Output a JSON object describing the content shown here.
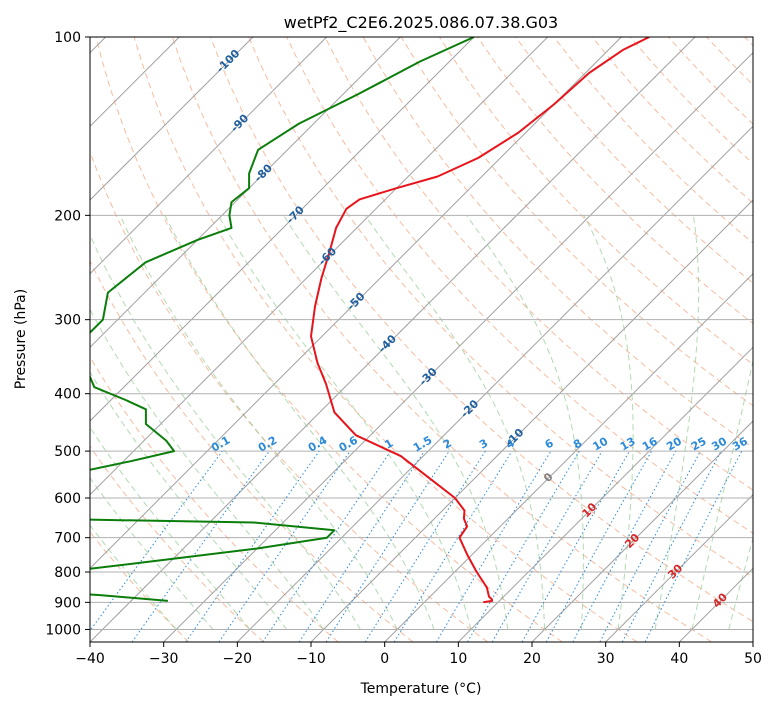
{
  "chart_data": {
    "type": "line",
    "subtype": "skew-T log-P diagram",
    "title": "wetPf2_C2E6.2025.086.07.38.G03",
    "xlabel": "Temperature (°C)",
    "ylabel": "Pressure (hPa)",
    "xlim": [
      -40,
      50
    ],
    "ylim": [
      1050,
      100
    ],
    "y_scale": "log",
    "grid": true,
    "x_ticks": [
      -40,
      -30,
      -20,
      -10,
      0,
      10,
      20,
      30,
      40,
      50
    ],
    "y_ticks": [
      100,
      200,
      300,
      400,
      500,
      600,
      700,
      800,
      900,
      1000
    ],
    "isotherm_labels": [
      {
        "value": "-100",
        "T": -100,
        "p": 110
      },
      {
        "value": "-90",
        "T": -90,
        "p": 140
      },
      {
        "value": "-80",
        "T": -80,
        "p": 170
      },
      {
        "value": "-70",
        "T": -70,
        "p": 200
      },
      {
        "value": "-60",
        "T": -60,
        "p": 235
      },
      {
        "value": "-50",
        "T": -50,
        "p": 280
      },
      {
        "value": "-40",
        "T": -40,
        "p": 330
      },
      {
        "value": "-30",
        "T": -30,
        "p": 375
      },
      {
        "value": "-20",
        "T": -20,
        "p": 425
      },
      {
        "value": "-10",
        "T": -10,
        "p": 475
      },
      {
        "value": "0",
        "T": 0,
        "p": 555
      },
      {
        "value": "10",
        "T": 10,
        "p": 630
      },
      {
        "value": "20",
        "T": 20,
        "p": 710
      },
      {
        "value": "30",
        "T": 30,
        "p": 800
      },
      {
        "value": "40",
        "T": 40,
        "p": 895
      }
    ],
    "mixing_ratio_labels": [
      "0.1",
      "0.2",
      "0.4",
      "0.6",
      "1",
      "1.5",
      "2",
      "3",
      "4",
      "6",
      "8",
      "10",
      "13",
      "16",
      "20",
      "25",
      "30",
      "36"
    ],
    "series": [
      {
        "name": "Temperature",
        "color": "#e8141b",
        "points": [
          [
            -46.2,
            100
          ],
          [
            -48.0,
            105
          ],
          [
            -49.5,
            115
          ],
          [
            -50.0,
            130
          ],
          [
            -51.0,
            145
          ],
          [
            -53.0,
            160
          ],
          [
            -56.0,
            172
          ],
          [
            -60.0,
            180
          ],
          [
            -63.5,
            188
          ],
          [
            -64.0,
            195
          ],
          [
            -62.8,
            210
          ],
          [
            -60.5,
            230
          ],
          [
            -58.0,
            255
          ],
          [
            -55.0,
            285
          ],
          [
            -51.5,
            320
          ],
          [
            -47.0,
            355
          ],
          [
            -43.0,
            385
          ],
          [
            -38.0,
            430
          ],
          [
            -32.0,
            470
          ],
          [
            -23.0,
            510
          ],
          [
            -15.5,
            560
          ],
          [
            -10.0,
            600
          ],
          [
            -7.0,
            630
          ],
          [
            -6.0,
            650
          ],
          [
            -4.5,
            670
          ],
          [
            -4.0,
            700
          ],
          [
            -0.5,
            750
          ],
          [
            3.0,
            800
          ],
          [
            6.5,
            850
          ],
          [
            8.0,
            880
          ],
          [
            8.8,
            890
          ],
          [
            9.0,
            895
          ],
          [
            8.0,
            900
          ]
        ]
      },
      {
        "name": "Dewpoint",
        "color": "#0a7d0a",
        "points": [
          [
            -70.0,
            100
          ],
          [
            -74.0,
            110
          ],
          [
            -78.0,
            125
          ],
          [
            -82.0,
            140
          ],
          [
            -84.0,
            155
          ],
          [
            -82.0,
            170
          ],
          [
            -80.0,
            180
          ],
          [
            -80.5,
            190
          ],
          [
            -79.0,
            200
          ],
          [
            -77.0,
            210
          ],
          [
            -80.0,
            220
          ],
          [
            -84.0,
            240
          ],
          [
            -85.0,
            270
          ],
          [
            -82.0,
            300
          ],
          [
            -82.0,
            330
          ],
          [
            -78.0,
            360
          ],
          [
            -74.0,
            390
          ],
          [
            -68.0,
            410
          ],
          [
            -64.0,
            425
          ],
          [
            -62.0,
            450
          ],
          [
            -57.0,
            480
          ],
          [
            -54.5,
            500
          ],
          [
            -59.0,
            520
          ],
          [
            -64.0,
            540
          ],
          [
            -64.0,
            560
          ],
          [
            -64.0,
            580
          ],
          [
            -63.0,
            600
          ],
          [
            -67.0,
            620
          ],
          [
            -70.0,
            640
          ],
          [
            -65.0,
            650
          ],
          [
            -34.0,
            660
          ],
          [
            -22.0,
            680
          ],
          [
            -22.0,
            700
          ],
          [
            -30.0,
            730
          ],
          [
            -40.0,
            760
          ],
          [
            -50.0,
            790
          ],
          [
            -56.0,
            810
          ],
          [
            -52.0,
            830
          ],
          [
            -54.0,
            850
          ],
          [
            -55.0,
            860
          ],
          [
            -45.0,
            875
          ],
          [
            -35.0,
            895
          ]
        ]
      }
    ]
  }
}
